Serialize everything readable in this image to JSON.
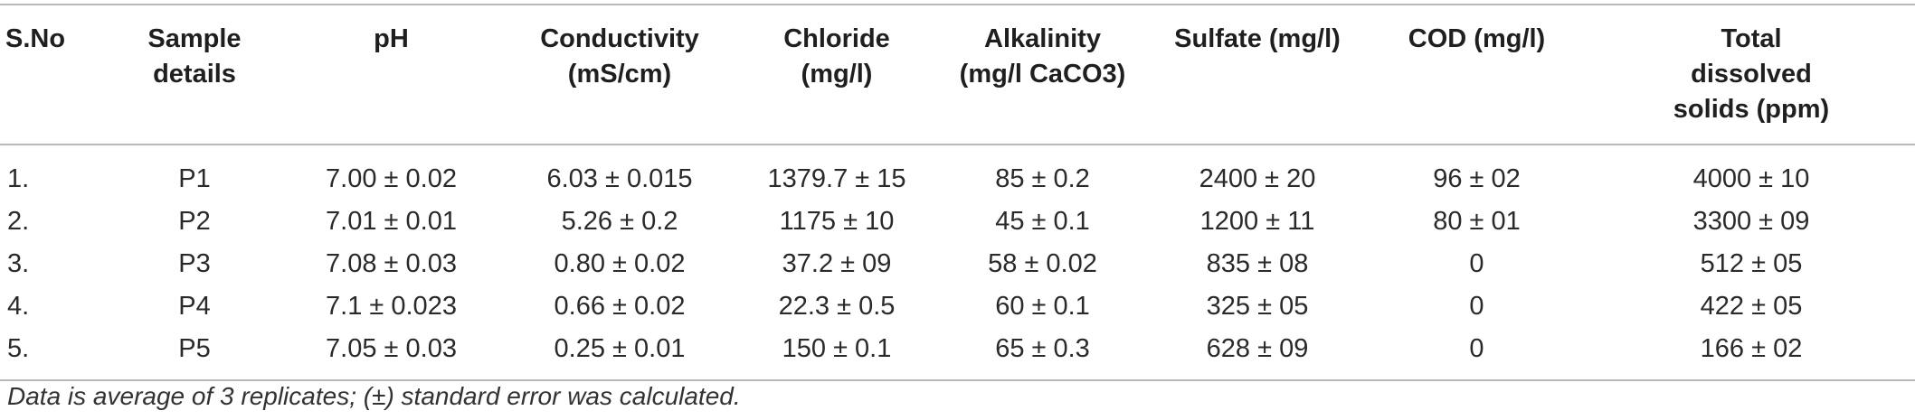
{
  "table": {
    "headers": [
      [
        "S.No"
      ],
      [
        "Sample",
        "details"
      ],
      [
        "pH"
      ],
      [
        "Conductivity",
        "(mS/cm)"
      ],
      [
        "Chloride",
        "(mg/l)"
      ],
      [
        "Alkalinity",
        "(mg/l CaCO3)"
      ],
      [
        "Sulfate (mg/l)"
      ],
      [
        "COD (mg/l)"
      ],
      [
        "Total",
        "dissolved",
        "solids (ppm)"
      ]
    ],
    "rows": [
      [
        "1.",
        "P1",
        "7.00 ± 0.02",
        "6.03 ± 0.015",
        "1379.7 ± 15",
        "85 ± 0.2",
        "2400 ± 20",
        "96 ± 02",
        "4000 ± 10"
      ],
      [
        "2.",
        "P2",
        "7.01 ± 0.01",
        "5.26 ± 0.2",
        "1175 ± 10",
        "45 ± 0.1",
        "1200 ± 11",
        "80 ± 01",
        "3300 ± 09"
      ],
      [
        "3.",
        "P3",
        "7.08 ± 0.03",
        "0.80 ± 0.02",
        "37.2 ± 09",
        "58 ± 0.02",
        "835 ± 08",
        "0",
        "512 ± 05"
      ],
      [
        "4.",
        "P4",
        "7.1 ± 0.023",
        "0.66 ± 0.02",
        "22.3 ± 0.5",
        "60 ± 0.1",
        "325 ± 05",
        "0",
        "422 ± 05"
      ],
      [
        "5.",
        "P5",
        "7.05 ± 0.03",
        "0.25 ± 0.01",
        "150 ± 0.1",
        "65 ± 0.3",
        "628 ± 09",
        "0",
        "166 ± 02"
      ]
    ]
  },
  "footnote": "Data is average of 3 replicates; (±) standard error was calculated."
}
